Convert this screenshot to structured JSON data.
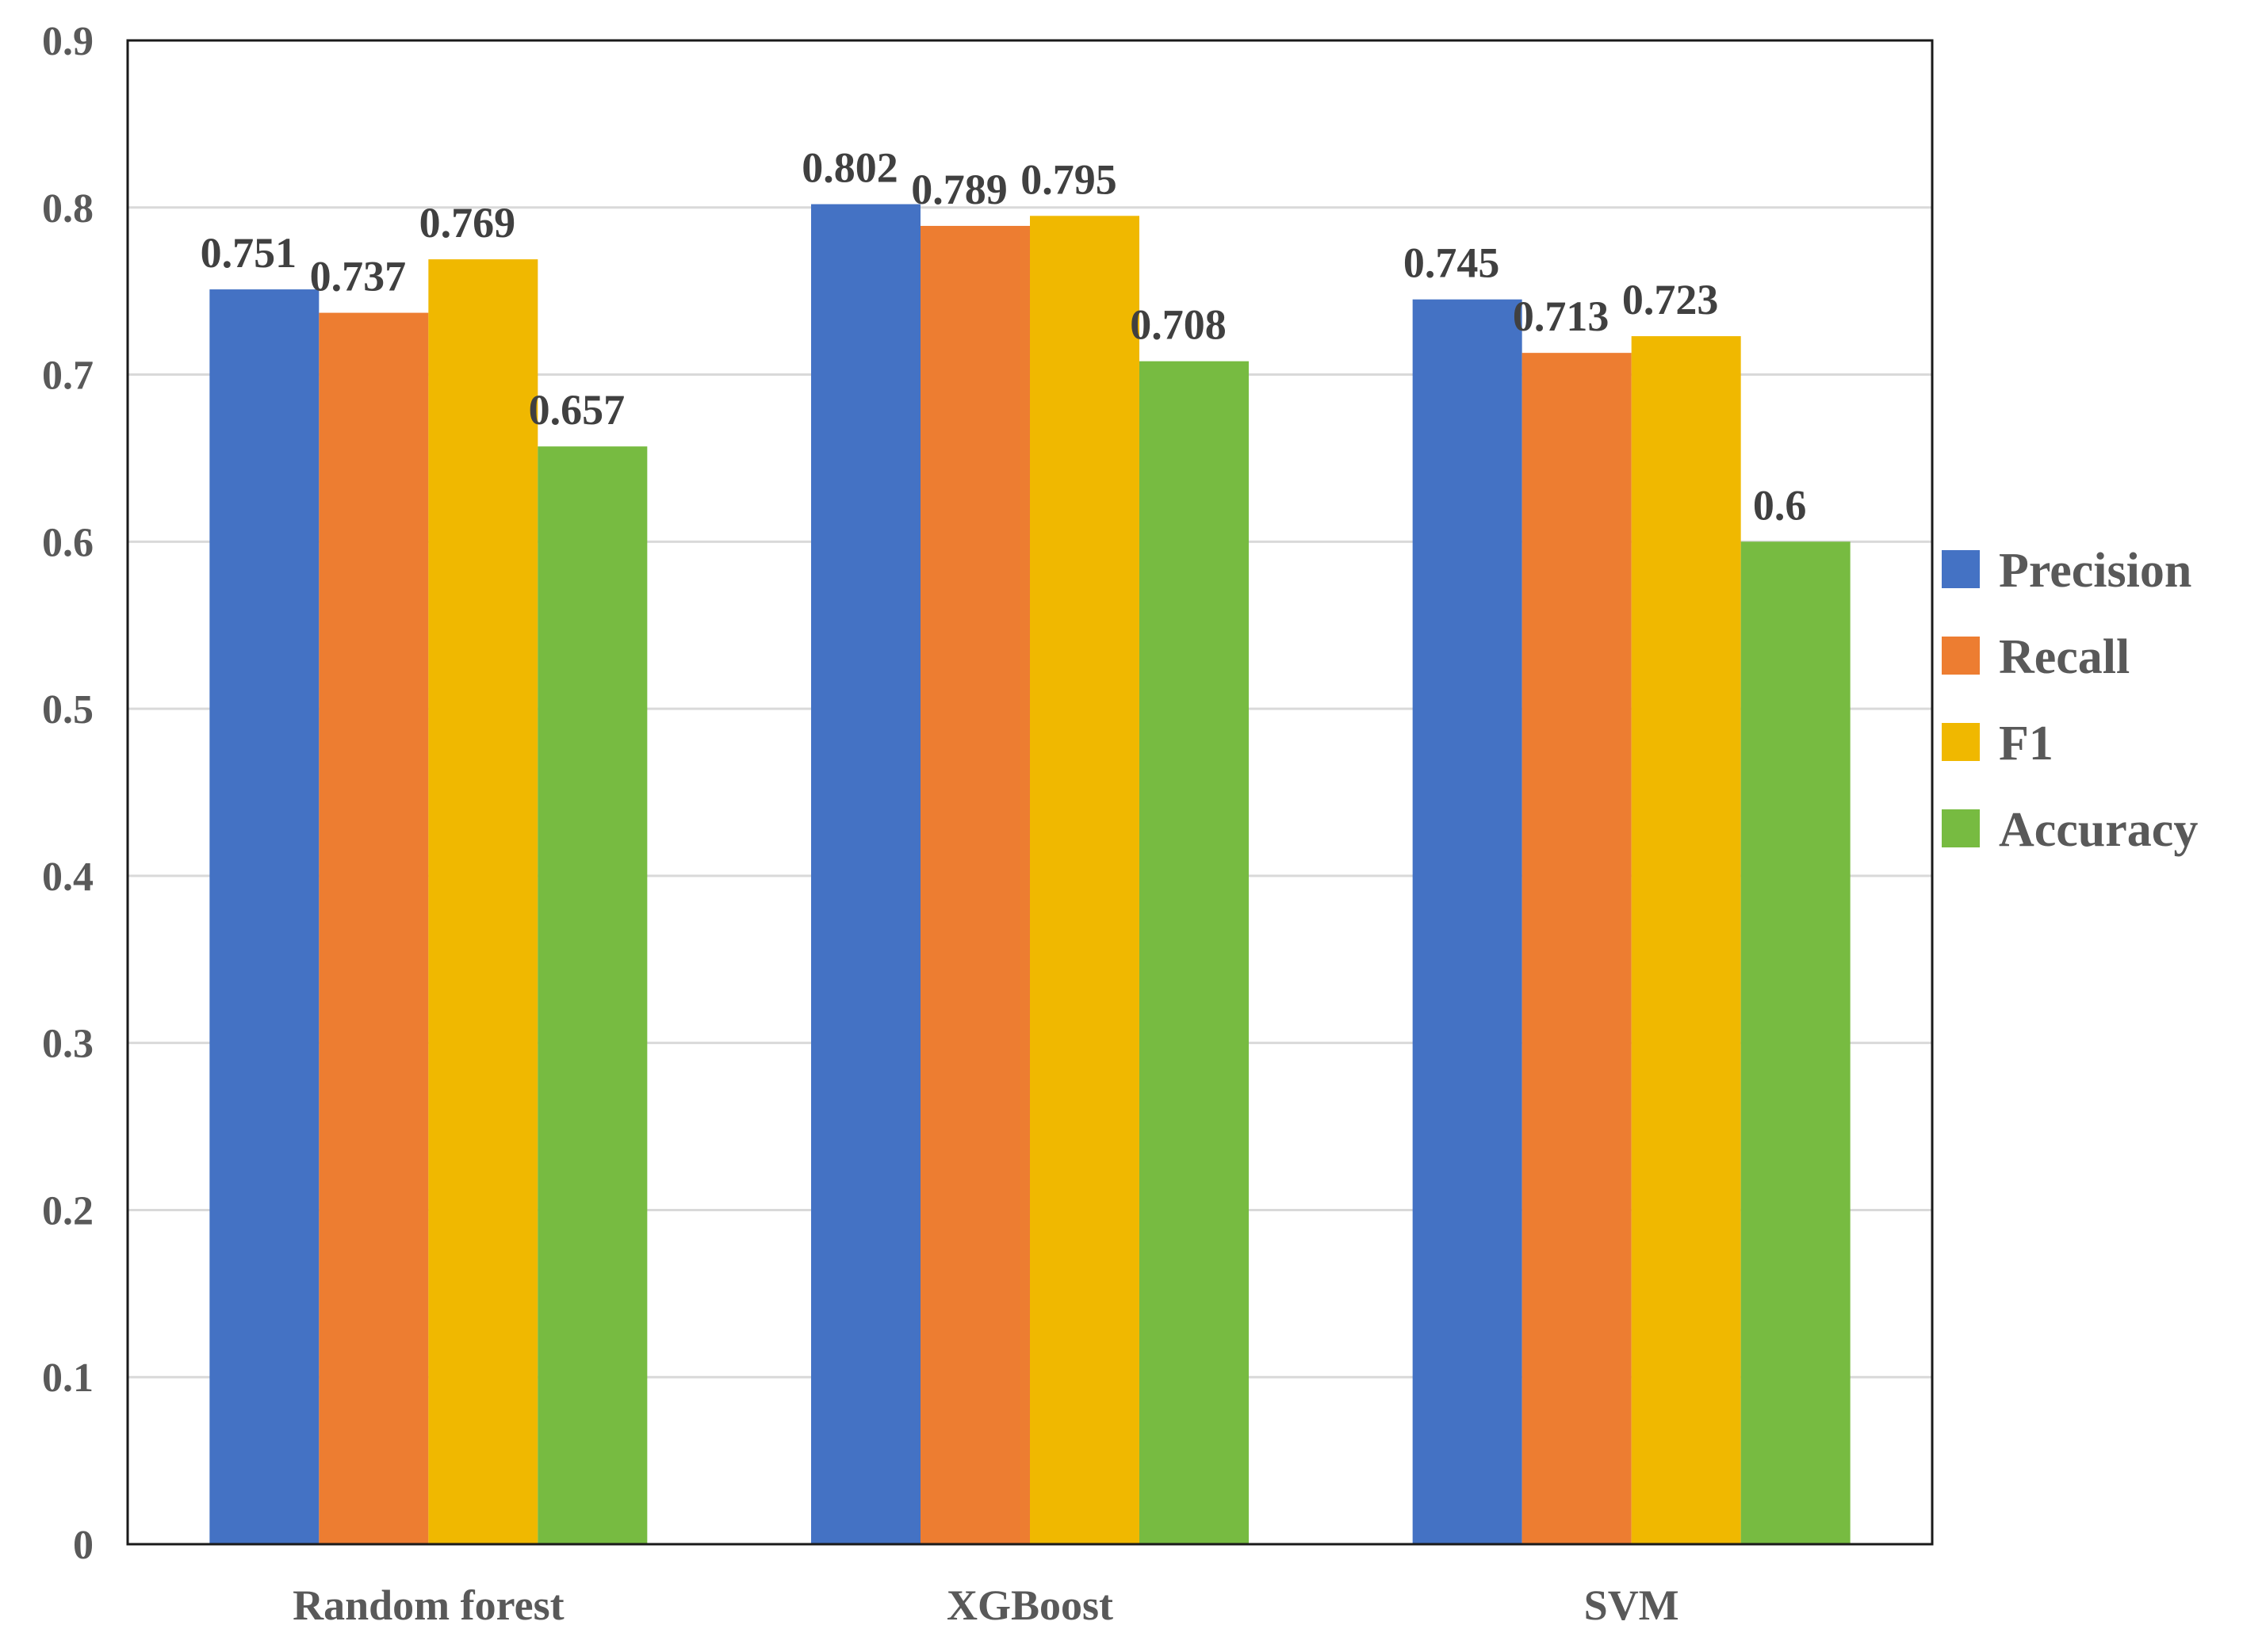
{
  "chart_data": {
    "type": "bar",
    "title": "",
    "xlabel": "",
    "ylabel": "",
    "categories": [
      "Random forest",
      "XGBoost",
      "SVM"
    ],
    "series": [
      {
        "name": "Precision",
        "color": "#4472C4",
        "values": [
          0.751,
          0.802,
          0.745
        ],
        "labels": [
          "0.751",
          "0.802",
          "0.745"
        ]
      },
      {
        "name": "Recall",
        "color": "#ED7D31",
        "values": [
          0.737,
          0.789,
          0.713
        ],
        "labels": [
          "0.737",
          "0.789",
          "0.713"
        ]
      },
      {
        "name": "F1",
        "color": "#F0B800",
        "values": [
          0.769,
          0.795,
          0.723
        ],
        "labels": [
          "0.769",
          "0.795",
          "0.723"
        ]
      },
      {
        "name": "Accuracy",
        "color": "#77BB41",
        "values": [
          0.657,
          0.708,
          0.6
        ],
        "labels": [
          "0.657",
          "0.708",
          "0.6"
        ]
      }
    ],
    "ylim": [
      0,
      0.9
    ],
    "yticks": [
      "0",
      "0.1",
      "0.2",
      "0.3",
      "0.4",
      "0.5",
      "0.6",
      "0.7",
      "0.8",
      "0.9"
    ],
    "grid": true,
    "legend_position": "right"
  }
}
